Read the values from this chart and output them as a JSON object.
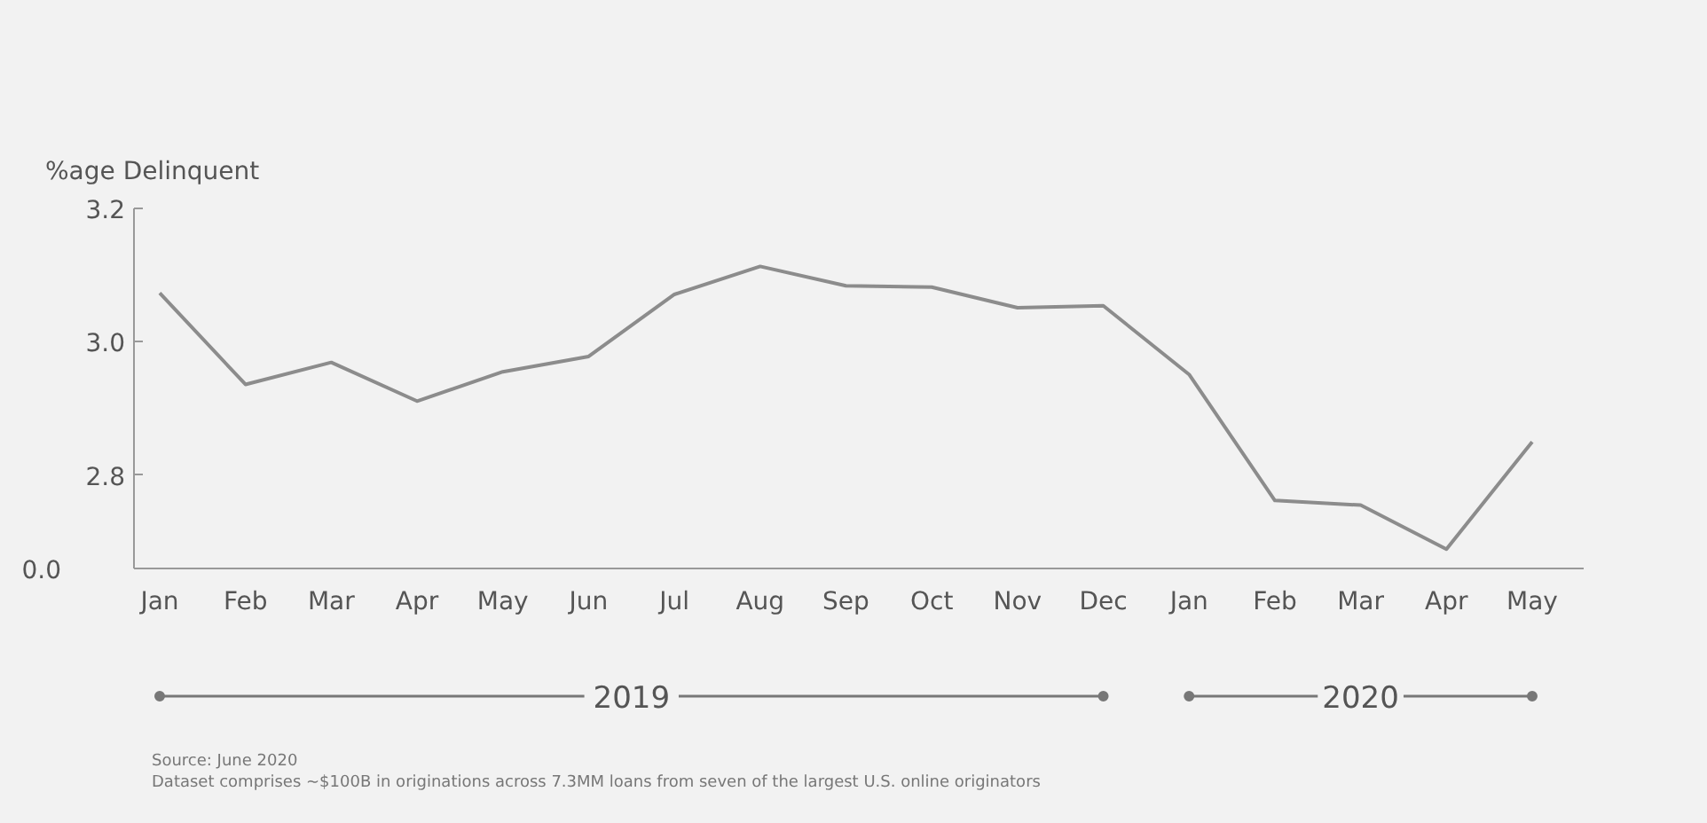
{
  "chart_data": {
    "type": "line",
    "ylabel": "%age Delinquent",
    "categories": [
      "Jan",
      "Feb",
      "Mar",
      "Apr",
      "May",
      "Jun",
      "Jul",
      "Aug",
      "Sep",
      "Oct",
      "Nov",
      "Dec",
      "Jan",
      "Feb",
      "Mar",
      "Apr",
      "May"
    ],
    "series": [
      {
        "color": "#8c8c8c",
        "values": [
          3.073,
          2.936,
          2.969,
          2.911,
          2.955,
          2.978,
          3.071,
          3.113,
          3.084,
          3.082,
          3.051,
          3.054,
          2.951,
          2.762,
          2.755,
          2.689,
          2.85
        ]
      }
    ],
    "ylim": [
      2.66,
      3.2
    ],
    "yticks": [
      {
        "value": 2.8,
        "label": "2.8"
      },
      {
        "value": 3.0,
        "label": "3.0"
      },
      {
        "value": 3.2,
        "label": "3.2"
      }
    ],
    "grid": false,
    "marker": "none",
    "line_style": "solid",
    "annotations": [
      "2019",
      "2020",
      "0.0",
      "Source: June 2020",
      "Dataset comprises ~$100B in originations across 7.3MM loans from seven of the largest U.S. online originators"
    ]
  }
}
